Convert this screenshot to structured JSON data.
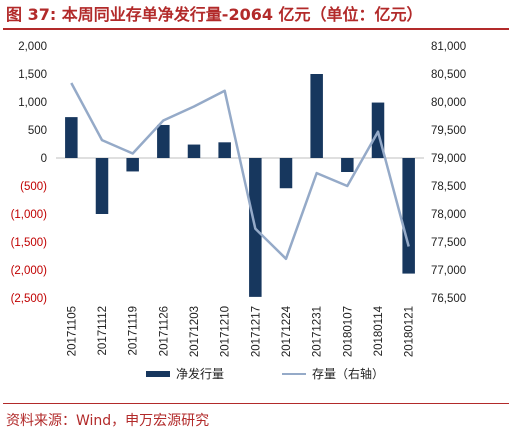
{
  "header": {
    "title": "图 37: 本周同业存单净发行量-2064 亿元（单位：亿元）"
  },
  "footer": {
    "source": "资料来源：Wind，申万宏源研究"
  },
  "colors": {
    "accent": "#b22a2a",
    "bar": "#17375e",
    "line": "#95aac8",
    "negative_tick": "#c00000"
  },
  "chart_data": {
    "type": "bar",
    "categories": [
      "20171105",
      "20171112",
      "20171119",
      "20171126",
      "20171203",
      "20171210",
      "20171217",
      "20171224",
      "20171231",
      "20180107",
      "20180114",
      "20180121"
    ],
    "series": [
      {
        "name": "净发行量",
        "type": "bar",
        "axis": "left",
        "values": [
          730,
          -1000,
          -240,
          590,
          240,
          280,
          -2480,
          -540,
          1500,
          -250,
          990,
          -2064
        ]
      },
      {
        "name": "存量（右轴）",
        "type": "line",
        "axis": "right",
        "values": [
          80340,
          79320,
          79080,
          79670,
          79920,
          80200,
          77740,
          77200,
          78730,
          78500,
          79470,
          77420
        ]
      }
    ],
    "ylim": [
      -2500,
      2000
    ],
    "yticks": [
      "2,000",
      "1,500",
      "1,000",
      "500",
      "0",
      "(500)",
      "(1,000)",
      "(1,500)",
      "(2,000)",
      "(2,500)"
    ],
    "ylim_right": [
      76500,
      81000
    ],
    "yticks_right": [
      "81,000",
      "80,500",
      "80,000",
      "79,500",
      "79,000",
      "78,500",
      "78,000",
      "77,500",
      "77,000",
      "76,500"
    ],
    "grid": false,
    "legend_position": "bottom"
  }
}
